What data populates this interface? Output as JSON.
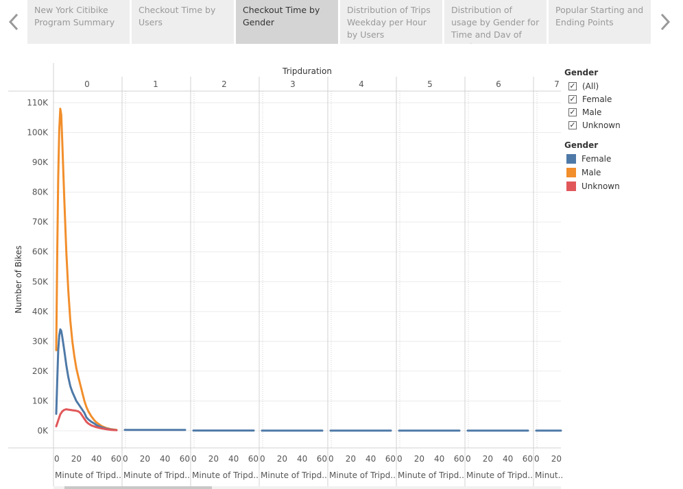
{
  "story_nav": {
    "tabs": [
      {
        "label": "New York Citibike Program Summary",
        "active": false
      },
      {
        "label": "Checkout Time by Users",
        "active": false
      },
      {
        "label": "Checkout Time by Gender",
        "active": true
      },
      {
        "label": "Distribution of Trips Weekday per Hour by Users",
        "active": false
      },
      {
        "label": "Distribution of usage by Gender for Time and Dav of Week",
        "active": false
      },
      {
        "label": "Popular Starting and Ending Points",
        "active": false
      }
    ],
    "prev_icon": "chevron-left-icon",
    "next_icon": "chevron-right-icon"
  },
  "filter": {
    "title": "Gender",
    "items": [
      {
        "label": "(All)",
        "checked": true
      },
      {
        "label": "Female",
        "checked": true
      },
      {
        "label": "Male",
        "checked": true
      },
      {
        "label": "Unknown",
        "checked": true
      }
    ]
  },
  "legend": {
    "title": "Gender",
    "items": [
      {
        "label": "Female",
        "color": "#4e79a7"
      },
      {
        "label": "Male",
        "color": "#f28e2b"
      },
      {
        "label": "Unknown",
        "color": "#e15759"
      }
    ]
  },
  "chart_data": {
    "type": "line",
    "column_header_title": "Tripduration",
    "panels": [
      "0",
      "1",
      "2",
      "3",
      "4",
      "5",
      "6",
      "7"
    ],
    "ylabel": "Number of Bikes",
    "xlabel": "Minute of Tripd..",
    "last_xlabel": "Minut..",
    "y_ticks": [
      "0K",
      "10K",
      "20K",
      "30K",
      "40K",
      "50K",
      "60K",
      "70K",
      "80K",
      "90K",
      "100K",
      "110K"
    ],
    "ylim": [
      0,
      110000
    ],
    "x_ticks": [
      0,
      20,
      40,
      60
    ],
    "xlim": [
      0,
      60
    ],
    "grid": true,
    "series": [
      {
        "name": "Male",
        "color": "#f28e2b",
        "x": [
          0,
          1,
          2,
          3,
          4,
          5,
          6,
          8,
          10,
          12,
          14,
          16,
          18,
          20,
          22,
          25,
          28,
          30,
          32,
          35,
          38,
          40,
          45,
          50,
          55,
          60
        ],
        "y": [
          27000,
          60000,
          85000,
          101000,
          108000,
          106000,
          97000,
          78000,
          60000,
          47000,
          37000,
          30000,
          25000,
          21000,
          18000,
          14000,
          10000,
          8000,
          6500,
          4800,
          3500,
          2800,
          1600,
          900,
          500,
          300
        ]
      },
      {
        "name": "Female",
        "color": "#4e79a7",
        "x": [
          0,
          1,
          2,
          3,
          4,
          5,
          6,
          8,
          10,
          12,
          14,
          16,
          18,
          20,
          22,
          25,
          28,
          30,
          32,
          35,
          38,
          40,
          45,
          50,
          55,
          60
        ],
        "y": [
          5700,
          17000,
          27000,
          32000,
          34000,
          33500,
          31500,
          27000,
          22000,
          18000,
          15000,
          13000,
          11500,
          10000,
          9000,
          7500,
          6000,
          4500,
          3800,
          3000,
          2400,
          1900,
          1200,
          700,
          400,
          200
        ],
        "panel_values": [
          null,
          300,
          100,
          50,
          50,
          50,
          50,
          50
        ]
      },
      {
        "name": "Unknown",
        "color": "#e15759",
        "x": [
          0,
          2,
          4,
          6,
          8,
          10,
          12,
          14,
          16,
          18,
          20,
          22,
          24,
          26,
          28,
          30,
          32,
          35,
          40,
          45,
          50,
          55,
          60
        ],
        "y": [
          1500,
          3500,
          5500,
          6500,
          7000,
          7200,
          7100,
          7000,
          6900,
          6800,
          6700,
          6500,
          6000,
          5000,
          4000,
          3000,
          2400,
          1800,
          1200,
          800,
          500,
          300,
          200
        ]
      }
    ]
  }
}
